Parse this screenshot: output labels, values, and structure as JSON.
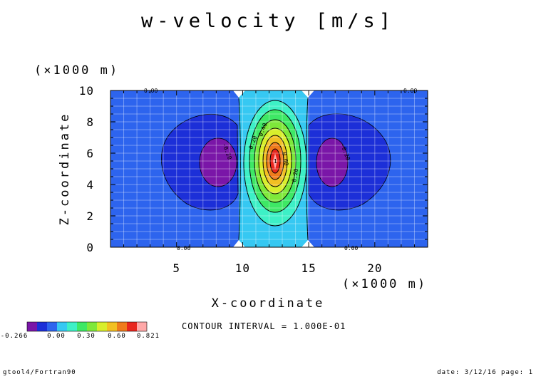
{
  "chart_data": {
    "type": "heatmap",
    "title": "w-velocity [m/s]",
    "xlabel": "X-coordinate",
    "ylabel": "Z-coordinate",
    "x_scale_label": "(×1000 m)",
    "y_scale_label": "(×1000 m)",
    "xlim": [
      0,
      24
    ],
    "ylim": [
      0,
      10
    ],
    "x_ticks": [
      5,
      10,
      15,
      20
    ],
    "y_ticks": [
      0,
      2,
      4,
      6,
      8,
      10
    ],
    "grid": true,
    "contour_interval_text": "CONTOUR INTERVAL = 1.000E-01",
    "colorbar": {
      "colors": [
        "#7a16a8",
        "#1c2fd8",
        "#2d64ee",
        "#36c8f2",
        "#3df0c6",
        "#3ee865",
        "#7ee83a",
        "#d8ee2c",
        "#f2c022",
        "#ef7b1c",
        "#e8261e",
        "#ffa8a8"
      ],
      "labels": [
        "-0.266",
        "0.00",
        "0.30",
        "0.60",
        "0.821"
      ]
    },
    "field_colors": {
      "min": "#7a16a8",
      "negative": "#1c2fd8",
      "zero": "#2d64ee",
      "pos_0_1": "#36c8f2",
      "pos_0_2": "#3df0c6",
      "pos_0_3": "#3ee865",
      "pos_0_4": "#7ee83a",
      "pos_0_5": "#d8ee2c",
      "pos_0_6": "#f2c022",
      "pos_0_7": "#ef7b1c",
      "pos_0_8": "#e8261e",
      "max": "#ffa8a8"
    },
    "contour_labels": [
      "0.00",
      "0.00",
      "0.00",
      "0.00",
      "0.20",
      "0.40",
      "0.60",
      "0.20",
      "-0.20",
      "-0.20",
      "1"
    ]
  },
  "footer": {
    "left": "gtool4/Fortran90",
    "right": "date: 3/12/16 page: 1"
  }
}
